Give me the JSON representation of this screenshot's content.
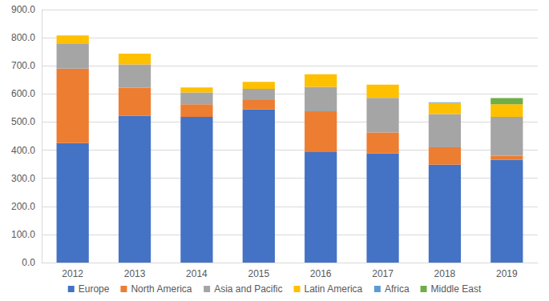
{
  "chart_data": {
    "type": "bar",
    "stacked": true,
    "grid": true,
    "legend": "bottom",
    "categories": [
      "2012",
      "2013",
      "2014",
      "2015",
      "2016",
      "2017",
      "2018",
      "2019"
    ],
    "series": [
      {
        "name": "Europe",
        "color": "#4472c4",
        "values": [
          425,
          522,
          518,
          545,
          393,
          388,
          348,
          365
        ]
      },
      {
        "name": "North America",
        "color": "#ed7d31",
        "values": [
          265,
          100,
          45,
          33,
          145,
          75,
          62,
          15
        ]
      },
      {
        "name": "Asia and Pacific",
        "color": "#a5a5a5",
        "values": [
          90,
          83,
          42,
          40,
          87,
          123,
          118,
          138
        ]
      },
      {
        "name": "Latin America",
        "color": "#ffc000",
        "values": [
          28,
          38,
          18,
          25,
          45,
          47,
          40,
          45
        ]
      },
      {
        "name": "Africa",
        "color": "#5b9bd5",
        "values": [
          0,
          0,
          0,
          0,
          0,
          0,
          2,
          0
        ]
      },
      {
        "name": "Middle East",
        "color": "#70ad47",
        "values": [
          0,
          0,
          0,
          0,
          0,
          0,
          0,
          22
        ]
      }
    ],
    "ylim": [
      0,
      900
    ],
    "yticks": [
      {
        "value": 0,
        "label": "0.0"
      },
      {
        "value": 100,
        "label": "100.0"
      },
      {
        "value": 200,
        "label": "200.0"
      },
      {
        "value": 300,
        "label": "300.0"
      },
      {
        "value": 400,
        "label": "400.0"
      },
      {
        "value": 500,
        "label": "500.0"
      },
      {
        "value": 600,
        "label": "600.0"
      },
      {
        "value": 700,
        "label": "700.0"
      },
      {
        "value": 800,
        "label": "800.0"
      },
      {
        "value": 900,
        "label": "900.0"
      }
    ]
  }
}
